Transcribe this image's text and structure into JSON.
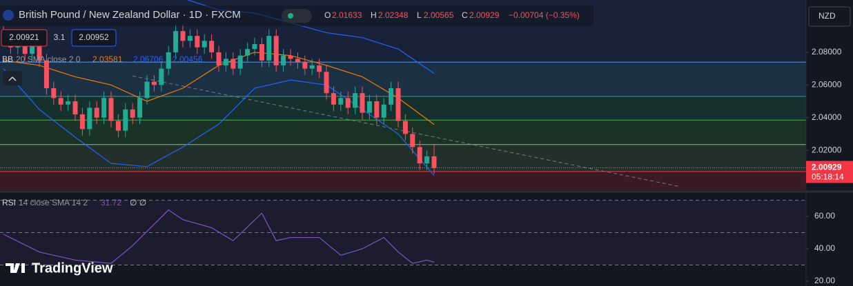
{
  "header": {
    "symbol": "British Pound / New Zealand Dollar · 1D · FXCM",
    "o_label": "O",
    "o": "2.01633",
    "h_label": "H",
    "h": "2.02348",
    "l_label": "L",
    "l": "2.00565",
    "c_label": "C",
    "c": "2.00929",
    "change": "−0.00704 (−0.35%)"
  },
  "quote": {
    "bid": "2.00921",
    "spread": "3.1",
    "ask": "2.00952"
  },
  "currency": "NZD",
  "logo": "TradingView",
  "chart_data": {
    "type": "candlestick",
    "open": [
      2.092,
      2.088,
      2.083,
      2.09,
      2.079,
      2.085,
      2.075,
      2.058,
      2.052,
      2.048,
      2.05,
      2.042,
      2.033,
      2.046,
      2.04,
      2.052,
      2.038,
      2.032,
      2.045,
      2.04,
      2.052,
      2.062,
      2.06,
      2.07,
      2.08,
      2.093,
      2.087,
      2.09,
      2.083,
      2.087,
      2.08,
      2.072,
      2.076,
      2.07,
      2.078,
      2.082,
      2.085,
      2.075,
      2.09,
      2.072,
      2.078,
      2.076,
      2.074,
      2.07,
      2.072,
      2.068,
      2.055,
      2.048,
      2.052,
      2.046,
      2.055,
      2.043,
      2.05,
      2.04,
      2.048,
      2.058,
      2.038,
      2.03,
      2.022,
      2.012,
      2.01633
    ],
    "high": [
      2.096,
      2.092,
      2.094,
      2.094,
      2.089,
      2.089,
      2.079,
      2.062,
      2.056,
      2.054,
      2.054,
      2.046,
      2.05,
      2.05,
      2.056,
      2.056,
      2.042,
      2.049,
      2.049,
      2.056,
      2.066,
      2.066,
      2.074,
      2.084,
      2.097,
      2.097,
      2.094,
      2.094,
      2.091,
      2.091,
      2.084,
      2.08,
      2.08,
      2.082,
      2.086,
      2.089,
      2.089,
      2.094,
      2.094,
      2.082,
      2.082,
      2.08,
      2.078,
      2.076,
      2.076,
      2.072,
      2.059,
      2.056,
      2.056,
      2.059,
      2.059,
      2.054,
      2.054,
      2.052,
      2.062,
      2.062,
      2.042,
      2.034,
      2.026,
      2.02,
      2.02348
    ],
    "low": [
      2.084,
      2.079,
      2.079,
      2.075,
      2.075,
      2.071,
      2.054,
      2.048,
      2.044,
      2.044,
      2.038,
      2.029,
      2.029,
      2.036,
      2.036,
      2.034,
      2.028,
      2.028,
      2.036,
      2.036,
      2.048,
      2.056,
      2.056,
      2.066,
      2.076,
      2.083,
      2.083,
      2.079,
      2.079,
      2.076,
      2.068,
      2.068,
      2.066,
      2.066,
      2.074,
      2.078,
      2.071,
      2.071,
      2.068,
      2.068,
      2.072,
      2.07,
      2.066,
      2.066,
      2.064,
      2.051,
      2.044,
      2.044,
      2.042,
      2.042,
      2.039,
      2.039,
      2.036,
      2.036,
      2.044,
      2.034,
      2.026,
      2.018,
      2.008,
      2.008,
      2.00565
    ],
    "close": [
      2.088,
      2.083,
      2.09,
      2.079,
      2.085,
      2.075,
      2.058,
      2.052,
      2.048,
      2.05,
      2.042,
      2.033,
      2.046,
      2.04,
      2.052,
      2.038,
      2.032,
      2.045,
      2.04,
      2.052,
      2.062,
      2.06,
      2.07,
      2.08,
      2.093,
      2.087,
      2.09,
      2.083,
      2.087,
      2.08,
      2.072,
      2.076,
      2.07,
      2.078,
      2.082,
      2.085,
      2.075,
      2.09,
      2.072,
      2.078,
      2.076,
      2.074,
      2.07,
      2.072,
      2.068,
      2.055,
      2.048,
      2.052,
      2.046,
      2.055,
      2.043,
      2.05,
      2.04,
      2.048,
      2.058,
      2.038,
      2.03,
      2.022,
      2.012,
      2.01633,
      2.00929
    ],
    "up_color": "#22ab94",
    "down_color": "#f7525f",
    "ylim": [
      1.996,
      2.112
    ],
    "yticks": [
      {
        "value": 2.08,
        "label": "2.08000"
      },
      {
        "value": 2.06,
        "label": "2.06000"
      },
      {
        "value": 2.04,
        "label": "2.04000"
      },
      {
        "value": 2.02,
        "label": "2.02000"
      }
    ],
    "top_fill": "#182238",
    "levels": [
      {
        "value": 2.074,
        "color": "#5b9cf6",
        "fill": "#1b3043"
      },
      {
        "value": 2.053,
        "color": "#26a69a",
        "fill": "#16302d"
      },
      {
        "value": 2.0385,
        "color": "#4caf50",
        "fill": "#1b3226"
      },
      {
        "value": 2.0235,
        "color": "#81c784",
        "fill": "#232f2a"
      },
      {
        "value": 2.007,
        "color": "#f23645",
        "fill": "#3a1a24"
      }
    ],
    "trendline": {
      "x": [
        18,
        94
      ],
      "y": [
        2.0655,
        1.998
      ],
      "color": "#787b86"
    },
    "bollinger": {
      "label": "BB",
      "params": "20 SMA close 2 0",
      "x": [
        0,
        5,
        10,
        15,
        20,
        25,
        30,
        35,
        40,
        45,
        50,
        55,
        60
      ],
      "middle": {
        "values": [
          2.075,
          2.072,
          2.065,
          2.06,
          2.05,
          2.058,
          2.072,
          2.08,
          2.078,
          2.072,
          2.065,
          2.052,
          2.03581
        ],
        "value_label": "2.03581",
        "color": "#f57c00"
      },
      "upper": {
        "values": [
          2.12,
          2.125,
          2.12,
          2.115,
          2.115,
          2.113,
          2.106,
          2.104,
          2.098,
          2.092,
          2.089,
          2.082,
          2.06706
        ],
        "value_label": "2.06706",
        "color": "#2962ff"
      },
      "lower": {
        "values": [
          2.07,
          2.045,
          2.028,
          2.012,
          2.01,
          2.022,
          2.036,
          2.058,
          2.063,
          2.06,
          2.045,
          2.03,
          2.00456
        ],
        "value_label": "2.00456",
        "color": "#2962ff"
      }
    },
    "last_price": {
      "value": 2.00929,
      "label": "2.00929",
      "countdown": "05:18:14",
      "color": "#f23645"
    },
    "rsi": {
      "label": "RSI",
      "params": "14 close SMA 14 2",
      "value_label": "31.72",
      "extra": "∅ ∅",
      "x": [
        0,
        5,
        10,
        15,
        18,
        23,
        25,
        29,
        32,
        36,
        38,
        40,
        44,
        47,
        50,
        53,
        55,
        57,
        59,
        60
      ],
      "values": [
        49,
        38,
        33,
        31,
        42,
        64,
        58,
        53,
        45,
        62,
        45,
        47,
        47,
        36,
        40,
        47,
        38,
        31,
        33,
        31.72
      ],
      "color": "#7e57c2",
      "ylim": [
        17,
        74.5
      ],
      "yticks": [
        {
          "value": 60,
          "label": "60.00"
        },
        {
          "value": 40,
          "label": "40.00"
        },
        {
          "value": 20,
          "label": "20.00"
        }
      ],
      "levels": [
        70,
        50,
        30
      ]
    }
  }
}
